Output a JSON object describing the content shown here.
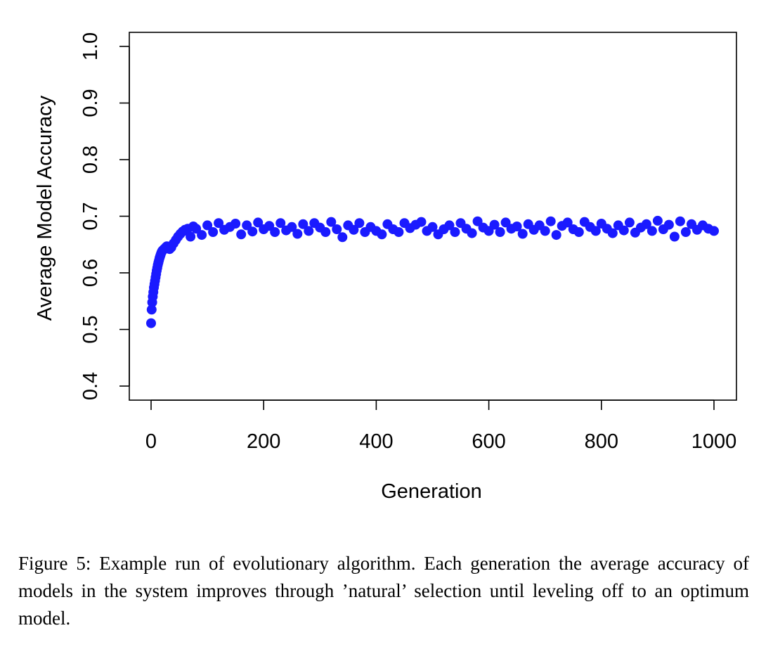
{
  "chart_data": {
    "type": "scatter",
    "title": "",
    "xlabel": "Generation",
    "ylabel": "Average Model Accuracy",
    "xlim": [
      0,
      1000
    ],
    "ylim": [
      0.4,
      1.0
    ],
    "x_ticks": [
      "0",
      "200",
      "400",
      "600",
      "800",
      "1000"
    ],
    "y_ticks": [
      "0.4",
      "0.5",
      "0.6",
      "0.7",
      "0.8",
      "0.9",
      "1.0"
    ],
    "point_color": "#1a1aff",
    "grid": false,
    "series": [
      {
        "x": [
          0,
          1,
          2,
          3,
          4,
          5,
          6,
          7,
          8,
          9,
          10,
          11,
          12,
          13,
          14,
          15,
          16,
          17,
          18,
          19,
          20,
          22,
          24,
          26,
          28,
          30,
          33,
          36,
          40,
          44,
          48,
          52,
          56,
          60,
          65,
          70,
          75,
          80,
          90,
          100,
          110,
          120,
          130,
          140,
          150,
          160,
          170,
          180,
          190,
          200,
          210,
          220,
          230,
          240,
          250,
          260,
          270,
          280,
          290,
          300,
          310,
          320,
          330,
          340,
          350,
          360,
          370,
          380,
          390,
          400,
          410,
          420,
          430,
          440,
          450,
          460,
          470,
          480,
          490,
          500,
          510,
          520,
          530,
          540,
          550,
          560,
          570,
          580,
          590,
          600,
          610,
          620,
          630,
          640,
          650,
          660,
          670,
          680,
          690,
          700,
          710,
          720,
          730,
          740,
          750,
          760,
          770,
          780,
          790,
          800,
          810,
          820,
          830,
          840,
          850,
          860,
          870,
          880,
          890,
          900,
          910,
          920,
          930,
          940,
          950,
          960,
          970,
          980,
          990,
          1000
        ],
        "y": [
          0.511,
          0.535,
          0.548,
          0.558,
          0.566,
          0.574,
          0.58,
          0.586,
          0.592,
          0.598,
          0.604,
          0.609,
          0.614,
          0.618,
          0.622,
          0.626,
          0.629,
          0.632,
          0.635,
          0.637,
          0.639,
          0.641,
          0.643,
          0.645,
          0.647,
          0.644,
          0.642,
          0.645,
          0.652,
          0.658,
          0.664,
          0.669,
          0.673,
          0.676,
          0.678,
          0.664,
          0.682,
          0.678,
          0.667,
          0.684,
          0.672,
          0.688,
          0.676,
          0.681,
          0.687,
          0.668,
          0.684,
          0.673,
          0.689,
          0.677,
          0.683,
          0.672,
          0.688,
          0.675,
          0.681,
          0.669,
          0.686,
          0.674,
          0.688,
          0.68,
          0.672,
          0.69,
          0.677,
          0.663,
          0.684,
          0.676,
          0.688,
          0.672,
          0.681,
          0.674,
          0.668,
          0.686,
          0.677,
          0.672,
          0.688,
          0.679,
          0.685,
          0.69,
          0.674,
          0.681,
          0.668,
          0.677,
          0.684,
          0.672,
          0.688,
          0.678,
          0.67,
          0.691,
          0.68,
          0.674,
          0.685,
          0.672,
          0.689,
          0.678,
          0.682,
          0.669,
          0.686,
          0.676,
          0.684,
          0.674,
          0.691,
          0.667,
          0.683,
          0.689,
          0.677,
          0.672,
          0.69,
          0.681,
          0.674,
          0.687,
          0.678,
          0.67,
          0.684,
          0.675,
          0.689,
          0.671,
          0.68,
          0.686,
          0.674,
          0.692,
          0.677,
          0.685,
          0.664,
          0.691,
          0.672,
          0.686,
          0.676,
          0.684,
          0.678,
          0.674
        ]
      }
    ]
  },
  "caption": "Figure 5: Example run of evolutionary algorithm. Each generation the average accuracy of models in the system improves through ’natural’ selection until leveling off to an optimum model."
}
